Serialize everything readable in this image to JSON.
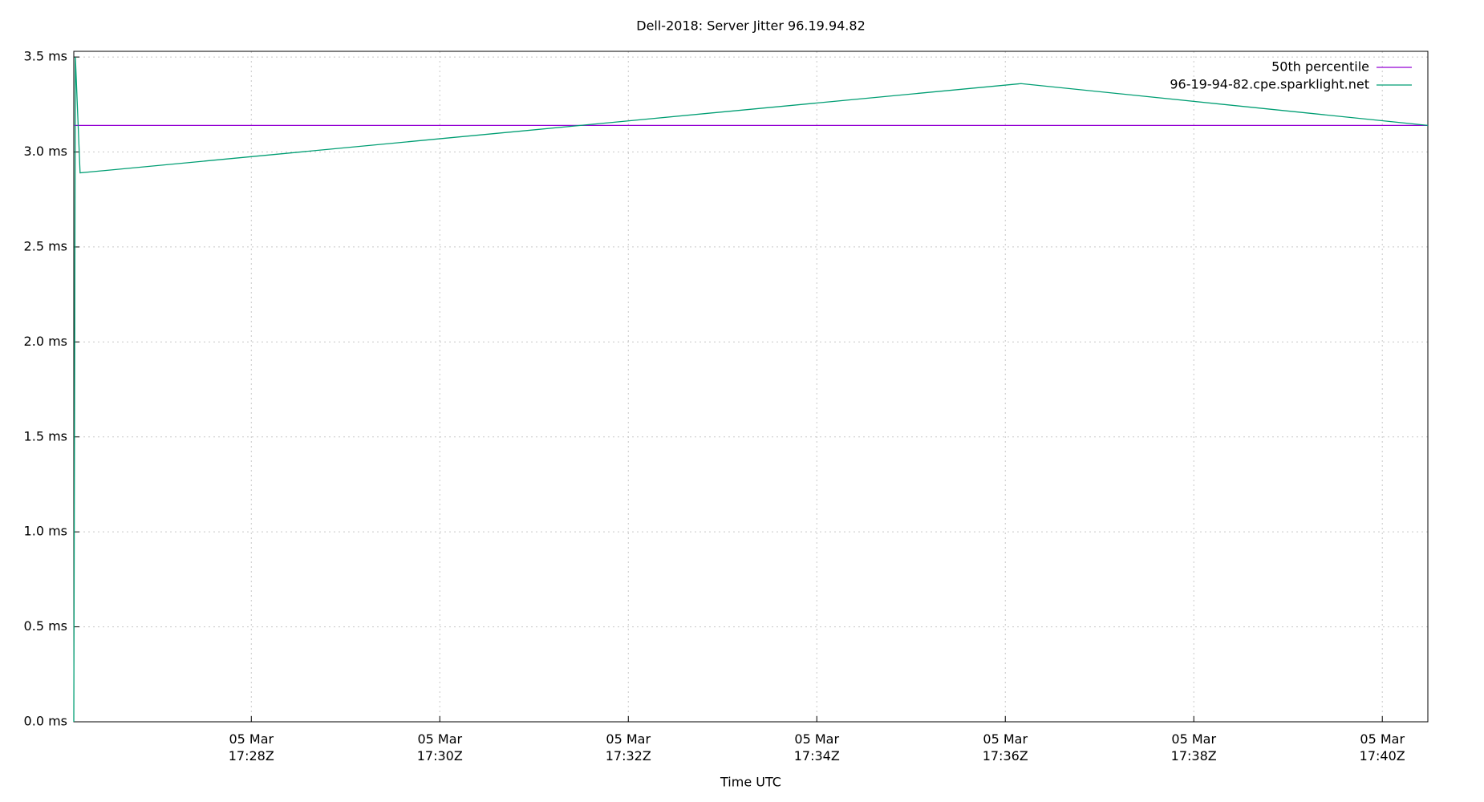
{
  "chart_data": {
    "type": "line",
    "title": "Dell-2018: Server Jitter 96.19.94.82",
    "x_label": "Time UTC",
    "x": [
      "17:26:07",
      "17:26:08",
      "17:26:11",
      "17:36:10",
      "17:40:29"
    ],
    "series": [
      {
        "name": "50th percentile",
        "color": "#9400d3",
        "values": [
          3.14,
          3.14,
          3.14,
          3.14,
          3.14
        ]
      },
      {
        "name": "96-19-94-82.cpe.sparklight.net",
        "color": "#009e73",
        "values": [
          0,
          3.5,
          2.89,
          3.36,
          3.14
        ]
      }
    ],
    "xlim": [
      "17:26:07",
      "17:40:29"
    ],
    "xticks": [
      {
        "value": "17:28:00",
        "label": "05 Mar 17:28Z"
      },
      {
        "value": "17:30:00",
        "label": "05 Mar 17:30Z"
      },
      {
        "value": "17:32:00",
        "label": "05 Mar 17:32Z"
      },
      {
        "value": "17:34:00",
        "label": "05 Mar 17:34Z"
      },
      {
        "value": "17:36:00",
        "label": "05 Mar 17:36Z"
      },
      {
        "value": "17:38:00",
        "label": "05 Mar 17:38Z"
      },
      {
        "value": "17:40:00",
        "label": "05 Mar 17:40Z"
      }
    ],
    "ylim": [
      0,
      3.53
    ],
    "yticks": [
      {
        "value": 0,
        "label": "0.0 ms"
      },
      {
        "value": 0.5,
        "label": "0.5 ms"
      },
      {
        "value": 1,
        "label": "1.0 ms"
      },
      {
        "value": 1.5,
        "label": "1.5 ms"
      },
      {
        "value": 2,
        "label": "2.0 ms"
      },
      {
        "value": 2.5,
        "label": "2.5 ms"
      },
      {
        "value": 3,
        "label": "3.0 ms"
      },
      {
        "value": 3.5,
        "label": "3.5 ms"
      }
    ],
    "grid": true,
    "legend": "top-right"
  }
}
